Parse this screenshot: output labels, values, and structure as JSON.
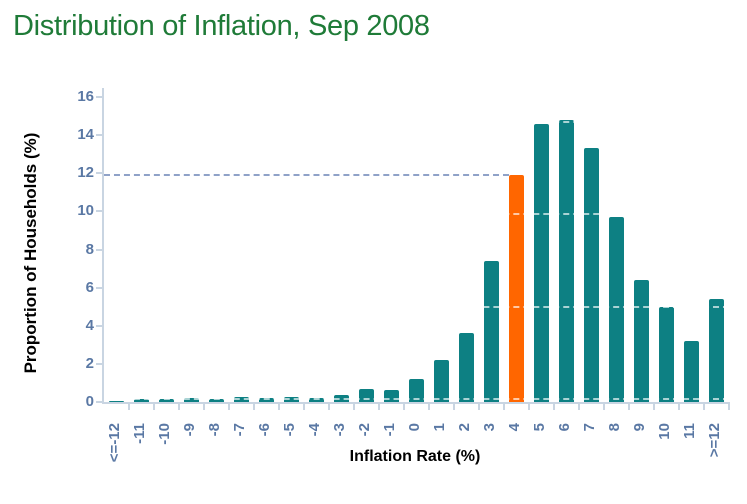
{
  "chart_data": {
    "type": "bar",
    "title": "Distribution of Inflation, Sep 2008",
    "xlabel": "Inflation Rate (%)",
    "ylabel": "Proportion of Households (%)",
    "categories": [
      "<=-12",
      "-11",
      "-10",
      "-9",
      "-8",
      "-7",
      "-6",
      "-5",
      "-4",
      "-3",
      "-2",
      "-1",
      "0",
      "1",
      "2",
      "3",
      "4",
      "5",
      "6",
      "7",
      "8",
      "9",
      "10",
      "11",
      ">=12"
    ],
    "values": [
      0.05,
      0.15,
      0.15,
      0.2,
      0.15,
      0.25,
      0.2,
      0.25,
      0.2,
      0.35,
      0.7,
      0.65,
      1.2,
      2.2,
      3.6,
      7.4,
      11.9,
      14.6,
      14.8,
      13.3,
      9.7,
      6.4,
      5.0,
      3.2,
      5.4
    ],
    "highlight_index": 16,
    "highlight_category": "4",
    "highlight_value": 11.9,
    "yticks": [
      0,
      2,
      4,
      6,
      8,
      10,
      12,
      14,
      16
    ],
    "ylim": [
      0,
      16
    ],
    "grid": "off (faint white dashed lines overlay the bars)",
    "legend": "none",
    "reference_line": {
      "value": 11.9,
      "style": "dashed",
      "from": "y-axis",
      "to": "bar 4"
    },
    "overlay_gridline_values": [
      0.15,
      5.0,
      9.85,
      14.7
    ],
    "colors": {
      "bar": "#0d8083",
      "bar_highlight": "#ff6600",
      "title": "#1f7b38",
      "tick_label": "#5a78a4",
      "axis_line": "#c9d5e2",
      "axis_title": "#000000",
      "reference_line": "#8fa2c8",
      "overlay_gridline": "rgba(255,255,255,0.65)"
    }
  }
}
